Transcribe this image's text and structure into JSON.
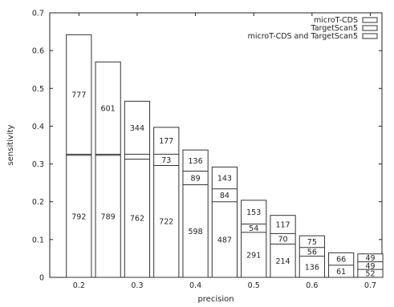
{
  "chart_data": {
    "type": "bar",
    "stacked": true,
    "xlabel": "precision",
    "ylabel": "sensitivity",
    "xlim": [
      0.15,
      0.72
    ],
    "ylim": [
      0,
      0.7
    ],
    "x_ticks": [
      "0.2",
      "0.3",
      "0.4",
      "0.5",
      "0.6",
      "0.7"
    ],
    "y_ticks": [
      "0",
      "0.1",
      "0.2",
      "0.3",
      "0.4",
      "0.5",
      "0.6",
      "0.7"
    ],
    "legend_position": "top-right",
    "series": [
      {
        "name": "microT-CDS",
        "key": "micro"
      },
      {
        "name": "TargetScan5",
        "key": "ts"
      },
      {
        "name": "microT-CDS and TargetScan5",
        "key": "both"
      }
    ],
    "bars": [
      {
        "x": 0.2,
        "both": 792,
        "ts": 0,
        "micro": 777,
        "total": 0.642,
        "both_top": 0.323,
        "ts_top": 0.326
      },
      {
        "x": 0.25,
        "both": 789,
        "ts": 0,
        "micro": 601,
        "total": 0.57,
        "both_top": 0.323,
        "ts_top": 0.326
      },
      {
        "x": 0.3,
        "both": 762,
        "ts": 0,
        "micro": 344,
        "total": 0.466,
        "both_top": 0.313,
        "ts_top": 0.326
      },
      {
        "x": 0.35,
        "both": 722,
        "ts": 73,
        "micro": 177,
        "total": 0.397,
        "both_top": 0.296,
        "ts_top": 0.326
      },
      {
        "x": 0.4,
        "both": 598,
        "ts": 89,
        "micro": 136,
        "total": 0.337,
        "both_top": 0.245,
        "ts_top": 0.281
      },
      {
        "x": 0.45,
        "both": 487,
        "ts": 84,
        "micro": 143,
        "total": 0.292,
        "both_top": 0.2,
        "ts_top": 0.234
      },
      {
        "x": 0.5,
        "both": 291,
        "ts": 54,
        "micro": 153,
        "total": 0.204,
        "both_top": 0.119,
        "ts_top": 0.141
      },
      {
        "x": 0.55,
        "both": 214,
        "ts": 70,
        "micro": 117,
        "total": 0.164,
        "both_top": 0.088,
        "ts_top": 0.116
      },
      {
        "x": 0.6,
        "both": 136,
        "ts": 56,
        "micro": 75,
        "total": 0.11,
        "both_top": 0.056,
        "ts_top": 0.079
      },
      {
        "x": 0.65,
        "both": 61,
        "ts": 0,
        "micro": 66,
        "total": 0.065,
        "both_top": 0.032,
        "ts_top": 0.032
      },
      {
        "x": 0.7,
        "both": 52,
        "ts": 49,
        "micro": 49,
        "total": 0.062,
        "both_top": 0.021,
        "ts_top": 0.041
      }
    ]
  }
}
